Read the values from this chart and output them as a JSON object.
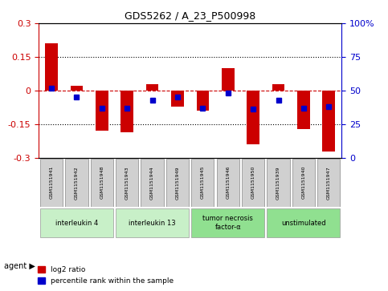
{
  "title": "GDS5262 / A_23_P500998",
  "samples": [
    "GSM1151941",
    "GSM1151942",
    "GSM1151948",
    "GSM1151943",
    "GSM1151944",
    "GSM1151949",
    "GSM1151945",
    "GSM1151946",
    "GSM1151950",
    "GSM1151939",
    "GSM1151940",
    "GSM1151947"
  ],
  "log2_ratio": [
    0.21,
    0.02,
    -0.18,
    -0.185,
    0.03,
    -0.07,
    -0.09,
    0.1,
    -0.24,
    0.03,
    -0.17,
    -0.27
  ],
  "percentile_rank": [
    52,
    45,
    37,
    37,
    43,
    45,
    37,
    48,
    36,
    43,
    37,
    38
  ],
  "agents": [
    {
      "label": "interleukin 4",
      "start": 0,
      "end": 2,
      "color": "#c8f0c8"
    },
    {
      "label": "interleukin 13",
      "start": 3,
      "end": 5,
      "color": "#c8f0c8"
    },
    {
      "label": "tumor necrosis\nfactor-α",
      "start": 6,
      "end": 8,
      "color": "#90e090"
    },
    {
      "label": "unstimulated",
      "start": 9,
      "end": 11,
      "color": "#90e090"
    }
  ],
  "ylim": [
    -0.3,
    0.3
  ],
  "yticks_left": [
    -0.3,
    -0.15,
    0,
    0.15,
    0.3
  ],
  "yticks_right": [
    0,
    25,
    50,
    75,
    100
  ],
  "bar_color": "#cc0000",
  "dot_color": "#0000cc",
  "bg_color": "#f5f5f5",
  "zero_line_color": "#cc0000",
  "grid_color": "#000000"
}
